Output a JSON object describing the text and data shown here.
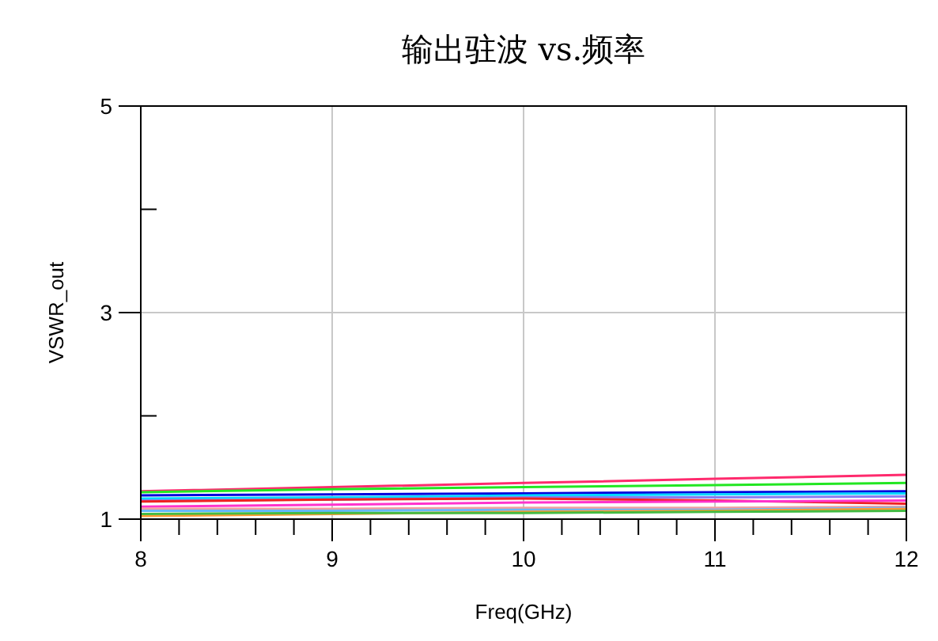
{
  "chart_data": {
    "type": "line",
    "title": "输出驻波 vs.频率",
    "xlabel": "Freq(GHz)",
    "ylabel": "VSWR_out",
    "x": [
      8,
      9,
      10,
      11,
      12
    ],
    "xlim": [
      8,
      12
    ],
    "xticks": [
      8,
      {
        "value": 8.2,
        "label": null
      },
      {
        "value": 8.4,
        "label": null
      },
      {
        "value": 8.6,
        "label": null
      },
      {
        "value": 8.8,
        "label": null
      },
      9,
      {
        "value": 9.2,
        "label": null
      },
      {
        "value": 9.4,
        "label": null
      },
      {
        "value": 9.6,
        "label": null
      },
      {
        "value": 9.8,
        "label": null
      },
      10,
      {
        "value": 10.2,
        "label": null
      },
      {
        "value": 10.4,
        "label": null
      },
      {
        "value": 10.6,
        "label": null
      },
      {
        "value": 10.8,
        "label": null
      },
      11,
      {
        "value": 11.2,
        "label": null
      },
      {
        "value": 11.4,
        "label": null
      },
      {
        "value": 11.6,
        "label": null
      },
      {
        "value": 11.8,
        "label": null
      },
      12
    ],
    "ylim": [
      1,
      5
    ],
    "yticks": [
      1,
      {
        "value": 2,
        "label": null
      },
      3,
      {
        "value": 4,
        "label": null
      },
      5
    ],
    "grid": true,
    "line_style": "solid",
    "marker": "none",
    "series": [
      {
        "color": "#ff2a6d",
        "values": [
          1.27,
          1.31,
          1.35,
          1.39,
          1.43
        ]
      },
      {
        "color": "#22e622",
        "values": [
          1.26,
          1.29,
          1.31,
          1.33,
          1.35
        ]
      },
      {
        "color": "#0000dd",
        "values": [
          1.23,
          1.24,
          1.25,
          1.26,
          1.27
        ]
      },
      {
        "color": "#00d8ff",
        "values": [
          1.2,
          1.21,
          1.23,
          1.24,
          1.25
        ]
      },
      {
        "color": "#8a7cf0",
        "values": [
          1.18,
          1.19,
          1.21,
          1.21,
          1.22
        ]
      },
      {
        "color": "#ee2222",
        "values": [
          1.17,
          1.19,
          1.2,
          1.18,
          1.15
        ]
      },
      {
        "color": "#ff33cc",
        "values": [
          1.12,
          1.14,
          1.16,
          1.17,
          1.18
        ]
      },
      {
        "color": "#f0a0a0",
        "values": [
          1.1,
          1.1,
          1.11,
          1.11,
          1.12
        ]
      },
      {
        "color": "#66b8ff",
        "values": [
          1.08,
          1.08,
          1.09,
          1.09,
          1.11
        ]
      },
      {
        "color": "#ff9933",
        "values": [
          1.03,
          1.05,
          1.07,
          1.08,
          1.1
        ]
      },
      {
        "color": "#44bb44",
        "values": [
          1.05,
          1.06,
          1.06,
          1.07,
          1.08
        ]
      }
    ]
  }
}
